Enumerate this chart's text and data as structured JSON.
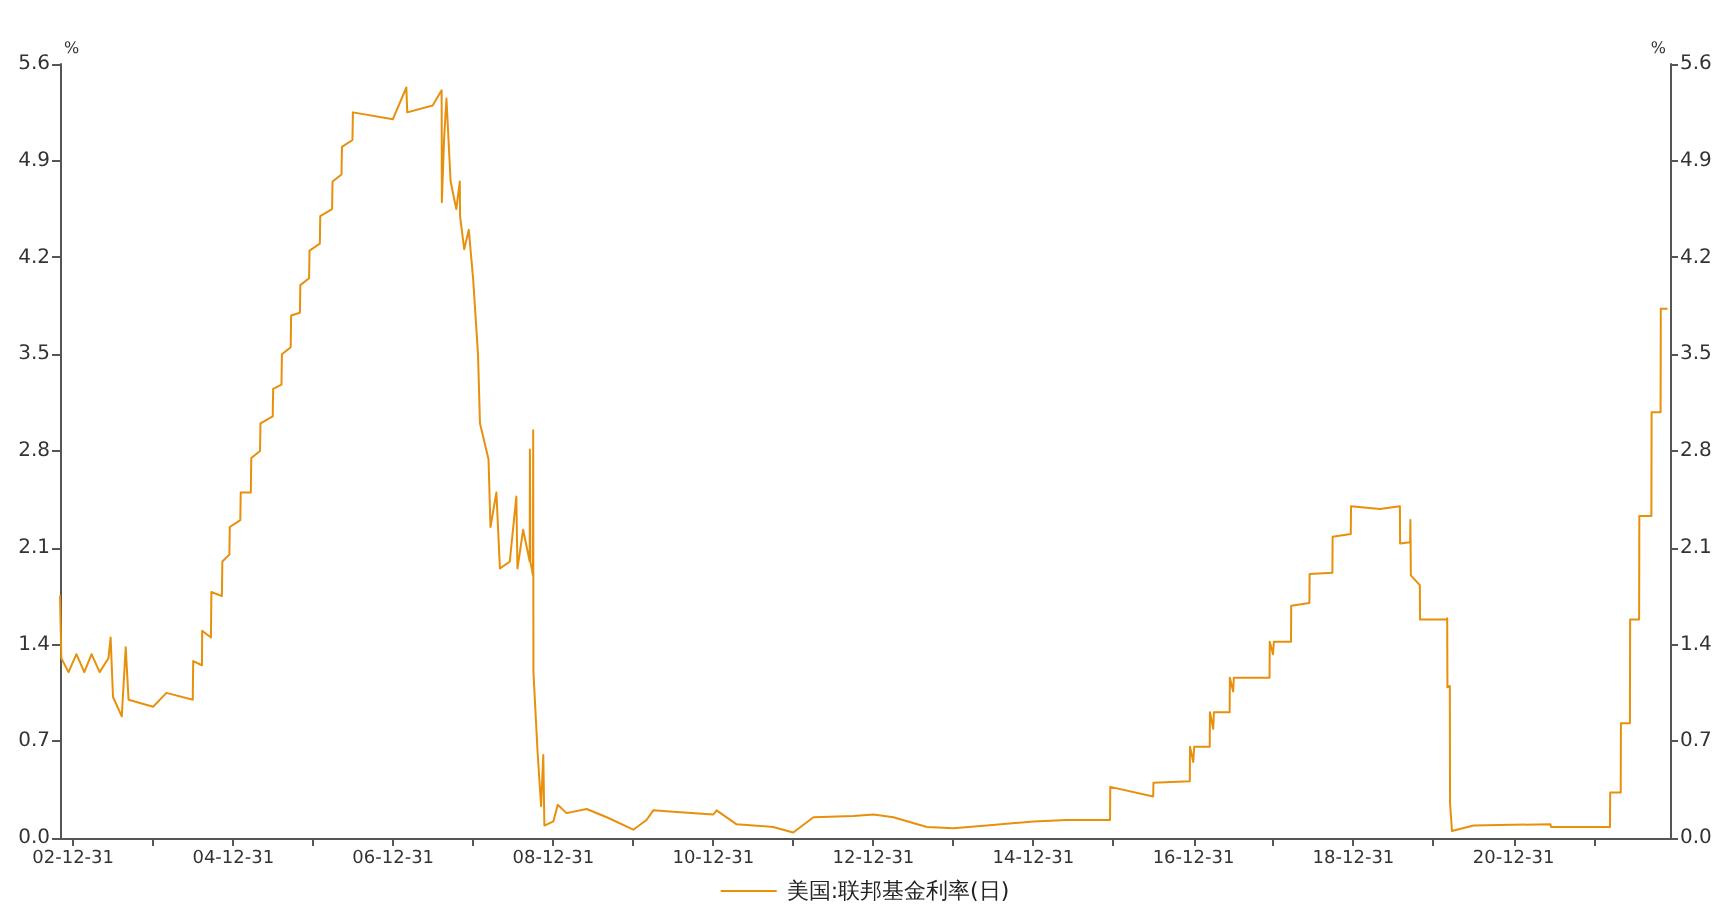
{
  "chart_data": {
    "type": "line",
    "ylabel": "%",
    "y2label": "%",
    "x": [
      "2002-11-01",
      "2002-11-07",
      "2002-12-10",
      "2003-01-15",
      "2003-02-20",
      "2003-03-25",
      "2003-05-01",
      "2003-06-10",
      "2003-06-20",
      "2003-07-01",
      "2003-08-10",
      "2003-08-28",
      "2003-09-10",
      "2003-12-31",
      "2004-03-01",
      "2004-06-29",
      "2004-07-01",
      "2004-08-10",
      "2004-08-11",
      "2004-09-20",
      "2004-09-22",
      "2004-11-09",
      "2004-11-11",
      "2004-12-13",
      "2004-12-15",
      "2005-02-01",
      "2005-02-03",
      "2005-03-21",
      "2005-03-23",
      "2005-05-02",
      "2005-05-04",
      "2005-06-29",
      "2005-07-01",
      "2005-08-08",
      "2005-08-10",
      "2005-09-19",
      "2005-09-21",
      "2005-10-31",
      "2005-11-02",
      "2005-12-12",
      "2005-12-14",
      "2006-01-30",
      "2006-02-01",
      "2006-03-27",
      "2006-03-29",
      "2006-05-09",
      "2006-05-11",
      "2006-06-28",
      "2006-06-30",
      "2006-12-29",
      "2007-03-01",
      "2007-03-05",
      "2007-06-29",
      "2007-08-09",
      "2007-08-10",
      "2007-08-20",
      "2007-08-31",
      "2007-09-19",
      "2007-10-15",
      "2007-10-31",
      "2007-11-01",
      "2007-11-20",
      "2007-12-11",
      "2007-12-31",
      "2008-01-22",
      "2008-01-31",
      "2008-03-10",
      "2008-03-19",
      "2008-04-15",
      "2008-05-01",
      "2008-06-15",
      "2008-07-15",
      "2008-07-20",
      "2008-08-15",
      "2008-09-14",
      "2008-09-15",
      "2008-09-17",
      "2008-09-29",
      "2008-09-30",
      "2008-10-01",
      "2008-10-20",
      "2008-11-05",
      "2008-11-15",
      "2008-11-20",
      "2008-12-31",
      "2009-01-20",
      "2009-03-01",
      "2009-06-01",
      "2009-09-01",
      "2009-12-31",
      "2010-03-01",
      "2010-04-01",
      "2010-07-01",
      "2010-12-31",
      "2011-01-15",
      "2011-04-15",
      "2011-09-30",
      "2011-12-31",
      "2012-04-01",
      "2012-10-01",
      "2012-12-31",
      "2013-04-01",
      "2013-09-01",
      "2013-12-31",
      "2014-06-01",
      "2014-12-31",
      "2015-06-01",
      "2015-12-16",
      "2015-12-17",
      "2016-06-30",
      "2016-07-01",
      "2016-12-14",
      "2016-12-15",
      "2016-12-30",
      "2017-01-03",
      "2017-03-15",
      "2017-03-16",
      "2017-03-31",
      "2017-04-03",
      "2017-06-14",
      "2017-06-15",
      "2017-06-30",
      "2017-07-03",
      "2017-12-13",
      "2017-12-14",
      "2017-12-29",
      "2018-01-02",
      "2018-03-21",
      "2018-03-22",
      "2018-06-13",
      "2018-06-14",
      "2018-09-26",
      "2018-09-27",
      "2018-12-19",
      "2018-12-20",
      "2019-05-01",
      "2019-07-31",
      "2019-08-01",
      "2019-09-16",
      "2019-09-17",
      "2019-09-19",
      "2019-10-30",
      "2019-10-31",
      "2020-02-28",
      "2020-03-03",
      "2020-03-04",
      "2020-03-15",
      "2020-03-16",
      "2020-03-25",
      "2020-07-01",
      "2021-06-17",
      "2021-06-20",
      "2022-03-16",
      "2022-03-17",
      "2022-05-04",
      "2022-05-05",
      "2022-06-15",
      "2022-06-16",
      "2022-07-27",
      "2022-07-28",
      "2022-09-21",
      "2022-09-22",
      "2022-11-02",
      "2022-11-03",
      "2022-11-30"
    ],
    "series": [
      {
        "name": "美国:联邦基金利率(日)",
        "color": "#e8900c",
        "values": [
          1.75,
          1.3,
          1.2,
          1.33,
          1.2,
          1.33,
          1.2,
          1.3,
          1.45,
          1.02,
          0.88,
          1.38,
          1.0,
          0.95,
          1.05,
          1.0,
          1.28,
          1.25,
          1.5,
          1.45,
          1.78,
          1.75,
          2.0,
          2.05,
          2.25,
          2.3,
          2.5,
          2.5,
          2.75,
          2.8,
          3.0,
          3.05,
          3.25,
          3.28,
          3.5,
          3.55,
          3.78,
          3.8,
          4.0,
          4.05,
          4.25,
          4.3,
          4.5,
          4.55,
          4.75,
          4.8,
          5.0,
          5.05,
          5.25,
          5.2,
          5.43,
          5.25,
          5.3,
          5.41,
          4.6,
          5.05,
          5.35,
          4.75,
          4.55,
          4.75,
          4.5,
          4.26,
          4.4,
          4.04,
          3.5,
          3.0,
          2.74,
          2.25,
          2.5,
          1.95,
          2.0,
          2.47,
          1.95,
          2.23,
          2.0,
          2.81,
          2.0,
          1.9,
          2.95,
          1.2,
          0.62,
          0.23,
          0.6,
          0.09,
          0.12,
          0.24,
          0.18,
          0.21,
          0.15,
          0.06,
          0.13,
          0.2,
          0.19,
          0.17,
          0.2,
          0.1,
          0.08,
          0.04,
          0.15,
          0.16,
          0.17,
          0.15,
          0.08,
          0.07,
          0.09,
          0.12,
          0.13,
          0.13,
          0.37,
          0.3,
          0.4,
          0.41,
          0.66,
          0.55,
          0.66,
          0.66,
          0.91,
          0.79,
          0.91,
          0.91,
          1.16,
          1.06,
          1.16,
          1.16,
          1.42,
          1.33,
          1.42,
          1.42,
          1.68,
          1.7,
          1.91,
          1.92,
          2.18,
          2.2,
          2.4,
          2.38,
          2.4,
          2.13,
          2.14,
          2.3,
          1.9,
          1.83,
          1.58,
          1.58,
          1.59,
          1.09,
          1.1,
          0.25,
          0.05,
          0.09,
          0.1,
          0.08,
          0.08,
          0.33,
          0.33,
          0.83,
          0.83,
          1.58,
          1.58,
          2.33,
          2.33,
          3.08,
          3.08,
          3.83,
          3.83
        ]
      }
    ],
    "xlim": [
      "2002-11-01",
      "2022-12-15"
    ],
    "xticks": [
      {
        "value": "2002-12-31",
        "label": "02-12-31"
      },
      {
        "value": "2003-12-31",
        "label": null
      },
      {
        "value": "2004-12-31",
        "label": "04-12-31"
      },
      {
        "value": "2005-12-31",
        "label": null
      },
      {
        "value": "2006-12-31",
        "label": "06-12-31"
      },
      {
        "value": "2007-12-31",
        "label": null
      },
      {
        "value": "2008-12-31",
        "label": "08-12-31"
      },
      {
        "value": "2009-12-31",
        "label": null
      },
      {
        "value": "2010-12-31",
        "label": "10-12-31"
      },
      {
        "value": "2011-12-31",
        "label": null
      },
      {
        "value": "2012-12-31",
        "label": "12-12-31"
      },
      {
        "value": "2013-12-31",
        "label": null
      },
      {
        "value": "2014-12-31",
        "label": "14-12-31"
      },
      {
        "value": "2015-12-31",
        "label": null
      },
      {
        "value": "2016-12-31",
        "label": "16-12-31"
      },
      {
        "value": "2017-12-31",
        "label": null
      },
      {
        "value": "2018-12-31",
        "label": "18-12-31"
      },
      {
        "value": "2019-12-31",
        "label": null
      },
      {
        "value": "2020-12-31",
        "label": "20-12-31"
      },
      {
        "value": "2021-12-31",
        "label": null
      }
    ],
    "ylim": [
      0,
      5.6
    ],
    "yticks": [
      {
        "value": 0,
        "label": "0.0"
      },
      0.7,
      1.4,
      2.1,
      2.8,
      3.5,
      4.2,
      4.9,
      5.6
    ],
    "y2lim": [
      0,
      5.6
    ],
    "y2ticks": [
      {
        "value": 0,
        "label": "0.0"
      },
      0.7,
      1.4,
      2.1,
      2.8,
      3.5,
      4.2,
      4.9,
      5.6
    ],
    "grid": false,
    "legend": "bottom",
    "marker": "none",
    "line_style": "solid"
  }
}
